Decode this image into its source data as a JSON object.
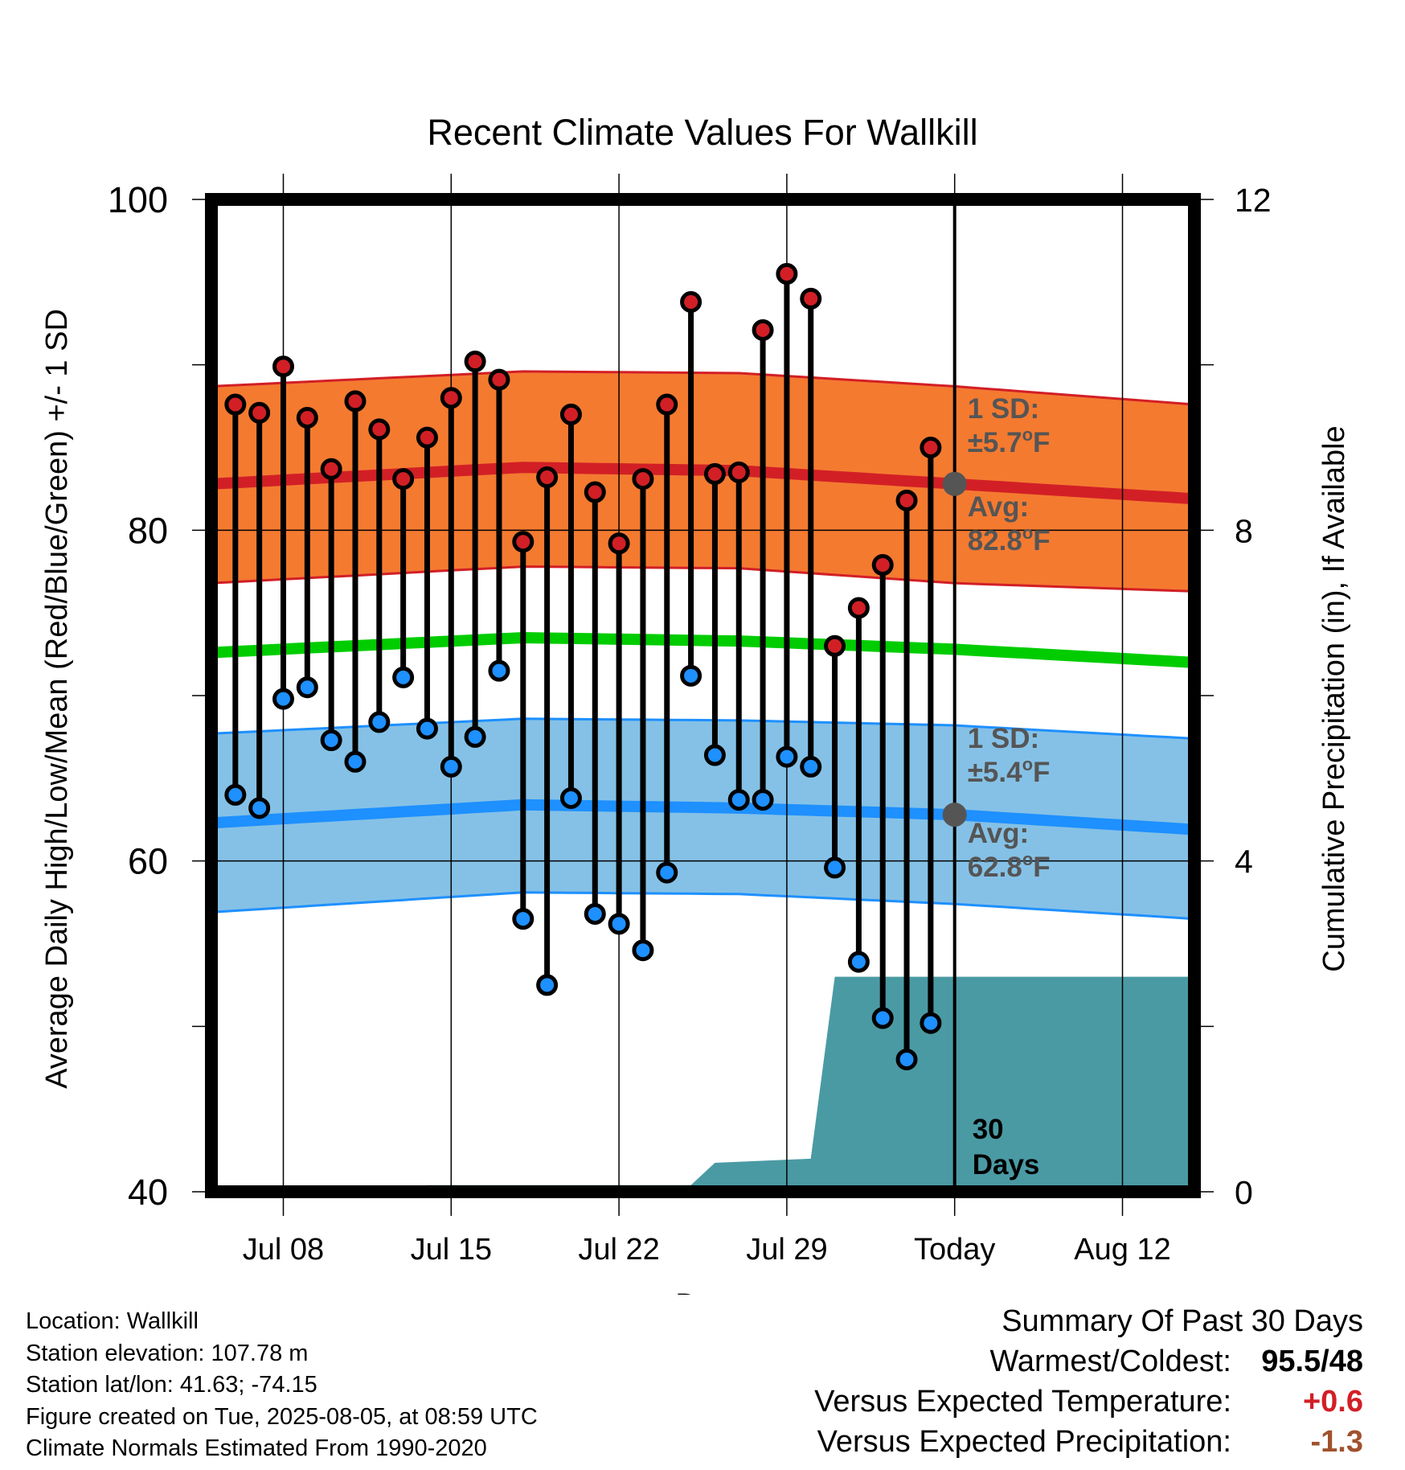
{
  "chart_data": {
    "type": "line",
    "title": "Recent Climate Values For Wallkill",
    "xlabel": "Day",
    "ylabel": "Average Daily High/Low/Mean (Red/Blue/Green) +/- 1 SD",
    "y2label": "Cumulative Precipitation (in), If Available",
    "ylim": [
      40,
      100
    ],
    "y2lim": [
      0,
      12
    ],
    "yticks": [
      "100",
      "80",
      "60",
      "40"
    ],
    "y2ticks": [
      "12",
      "8",
      "4",
      "0"
    ],
    "xtick_labels": [
      "Jul 08",
      "Jul 15",
      "Jul 22",
      "Jul 29",
      "Today",
      "Aug 12"
    ],
    "x_start": "2025-07-05",
    "x_end": "2025-08-15",
    "today": "2025-08-05",
    "grid": true,
    "days": [
      "2025-07-06",
      "2025-07-07",
      "2025-07-08",
      "2025-07-09",
      "2025-07-10",
      "2025-07-11",
      "2025-07-12",
      "2025-07-13",
      "2025-07-14",
      "2025-07-15",
      "2025-07-16",
      "2025-07-17",
      "2025-07-18",
      "2025-07-19",
      "2025-07-20",
      "2025-07-21",
      "2025-07-22",
      "2025-07-23",
      "2025-07-24",
      "2025-07-25",
      "2025-07-26",
      "2025-07-27",
      "2025-07-28",
      "2025-07-29",
      "2025-07-30",
      "2025-07-31",
      "2025-08-01",
      "2025-08-02",
      "2025-08-03",
      "2025-08-04"
    ],
    "series": [
      {
        "name": "High",
        "color": "#d21f26",
        "values": [
          87.6,
          87.1,
          89.9,
          86.8,
          83.7,
          87.8,
          86.1,
          83.1,
          85.6,
          88.0,
          90.2,
          89.1,
          79.3,
          83.2,
          87.0,
          82.3,
          79.2,
          83.1,
          87.6,
          93.8,
          83.4,
          83.5,
          92.1,
          95.5,
          94.0,
          73.0,
          75.3,
          77.9,
          81.8,
          85.0
        ]
      },
      {
        "name": "Low",
        "color": "#1e90ff",
        "values": [
          64.0,
          63.2,
          69.8,
          70.5,
          67.3,
          66.0,
          68.4,
          71.1,
          68.0,
          65.7,
          67.5,
          71.5,
          56.5,
          52.5,
          63.8,
          56.8,
          56.2,
          54.6,
          59.3,
          71.2,
          66.4,
          63.7,
          63.7,
          66.3,
          65.7,
          59.6,
          53.9,
          50.5,
          48.0,
          50.2
        ]
      }
    ],
    "normals": {
      "high_avg": [
        82.8,
        83.8,
        83.6,
        82.8,
        81.9
      ],
      "high_sd_upper": [
        88.7,
        89.6,
        89.5,
        88.7,
        87.6
      ],
      "high_sd_lower": [
        76.8,
        77.8,
        77.7,
        76.8,
        76.3
      ],
      "mean": [
        72.6,
        73.5,
        73.3,
        72.8,
        72.0
      ],
      "low_avg": [
        62.3,
        63.4,
        63.2,
        62.8,
        61.9
      ],
      "low_sd_upper": [
        67.7,
        68.6,
        68.5,
        68.2,
        67.4
      ],
      "low_sd_lower": [
        56.9,
        58.1,
        58.0,
        57.4,
        56.5
      ],
      "dates": [
        "2025-07-05",
        "2025-07-18",
        "2025-07-27",
        "2025-08-05",
        "2025-08-15"
      ]
    },
    "precipitation": {
      "dates": [
        "2025-07-05",
        "2025-07-13",
        "2025-07-14",
        "2025-07-25",
        "2025-07-26",
        "2025-07-30",
        "2025-07-31",
        "2025-08-15"
      ],
      "values": [
        0,
        0,
        0.08,
        0.08,
        0.35,
        0.4,
        2.6,
        2.6
      ]
    },
    "annotations": {
      "high_sd_label": "1 SD:",
      "high_sd_value": "±5.7",
      "high_avg_label": "Avg:",
      "high_avg_value": "82.8",
      "low_sd_label": "1 SD:",
      "low_sd_value": "±5.4",
      "low_avg_label": "Avg:",
      "low_avg_value": "62.8",
      "deg_unit": "o",
      "f_unit": "F",
      "period_number": "30",
      "period_unit": "Days"
    }
  },
  "station": {
    "location": "Location: Wallkill",
    "elevation": "Station elevation: 107.78 m",
    "latlon": "Station lat/lon: 41.63; -74.15",
    "created": "Figure created on Tue, 2025-08-05, at 08:59 UTC",
    "normals": "Climate Normals Estimated From 1990-2020"
  },
  "summary": {
    "title": "Summary Of Past 30 Days",
    "warmest_label": "Warmest/Coldest:",
    "warmest_value": "95.5/48",
    "temp_label": "Versus Expected Temperature:",
    "temp_value": "+0.6",
    "precip_label": "Versus Expected Precipitation:",
    "precip_value": "-1.3"
  },
  "colors": {
    "high": "#d21f26",
    "high_band": "#f47a30",
    "mean": "#00cc00",
    "low": "#1e90ff",
    "low_band": "#85c1e6",
    "precip": "#4a9aa4",
    "annotation": "#555555"
  }
}
